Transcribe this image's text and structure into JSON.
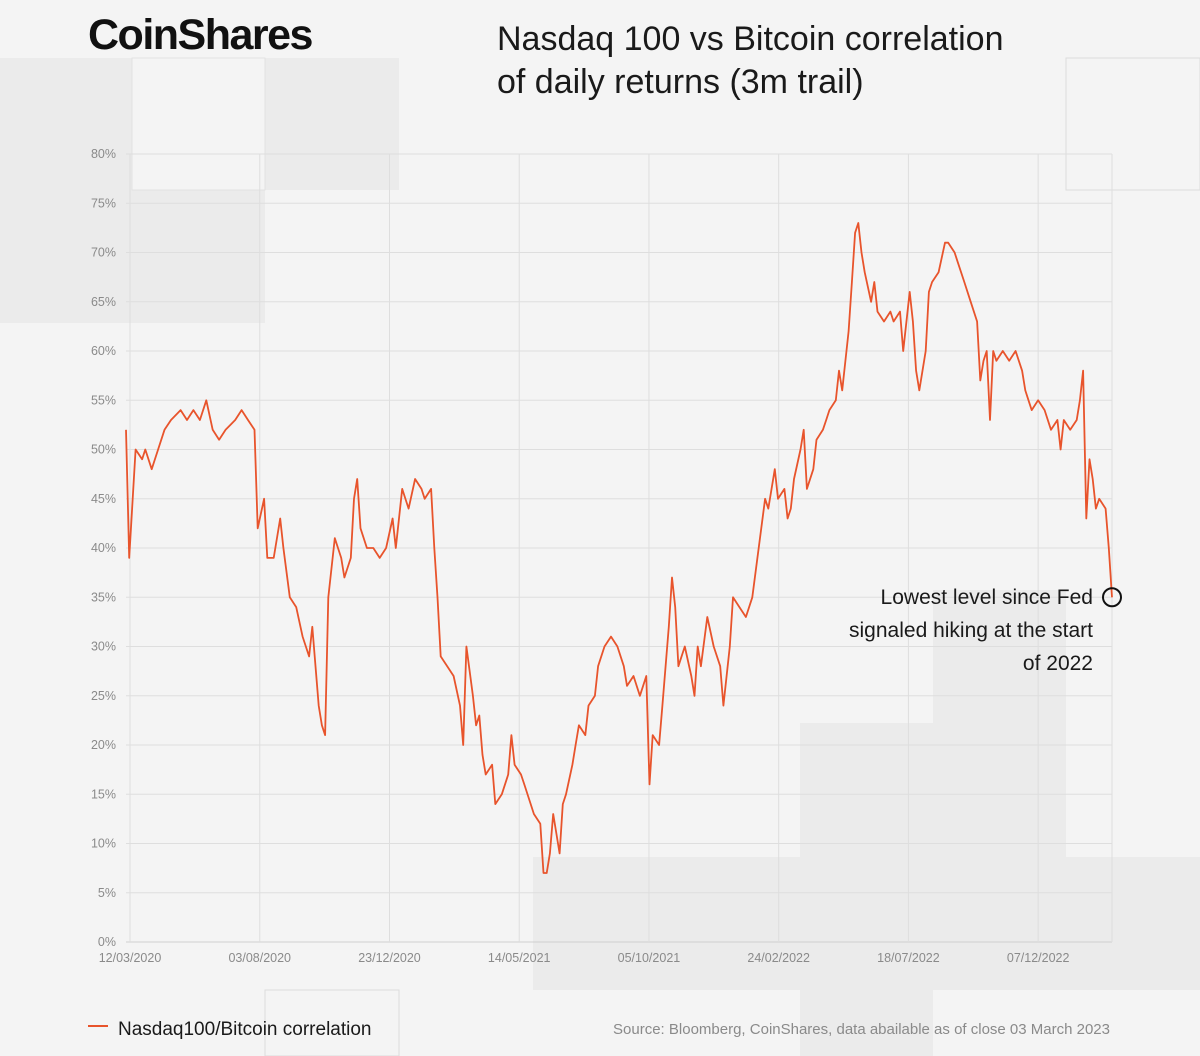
{
  "brand": {
    "logo_text": "CoinShares"
  },
  "chart_data": {
    "type": "line",
    "title_lines": [
      "Nasdaq 100 vs Bitcoin correlation",
      "of daily returns (3m trail)"
    ],
    "y_tick_labels": [
      "0%",
      "5%",
      "10%",
      "15%",
      "20%",
      "25%",
      "30%",
      "35%",
      "40%",
      "45%",
      "50%",
      "55%",
      "60%",
      "65%",
      "70%",
      "75%",
      "80%"
    ],
    "x_tick_labels": [
      "12/03/2020",
      "03/08/2020",
      "23/12/2020",
      "14/05/2021",
      "05/10/2021",
      "24/02/2022",
      "18/07/2022",
      "07/12/2022"
    ],
    "ylim": [
      0,
      80
    ],
    "grid": true,
    "line_color": "#e8542c",
    "series": [
      {
        "name": "Nasdaq100/Bitcoin correlation",
        "points": [
          [
            0,
            52
          ],
          [
            1,
            39
          ],
          [
            3,
            50
          ],
          [
            5,
            49
          ],
          [
            6,
            50
          ],
          [
            8,
            48
          ],
          [
            10,
            50
          ],
          [
            12,
            52
          ],
          [
            14,
            53
          ],
          [
            17,
            54
          ],
          [
            19,
            53
          ],
          [
            21,
            54
          ],
          [
            23,
            53
          ],
          [
            25,
            55
          ],
          [
            27,
            52
          ],
          [
            29,
            51
          ],
          [
            31,
            52
          ],
          [
            34,
            53
          ],
          [
            36,
            54
          ],
          [
            38,
            53
          ],
          [
            40,
            52
          ],
          [
            41,
            42
          ],
          [
            43,
            45
          ],
          [
            44,
            39
          ],
          [
            46,
            39
          ],
          [
            48,
            43
          ],
          [
            49,
            40
          ],
          [
            51,
            35
          ],
          [
            53,
            34
          ],
          [
            55,
            31
          ],
          [
            57,
            29
          ],
          [
            58,
            32
          ],
          [
            60,
            24
          ],
          [
            61,
            22
          ],
          [
            62,
            21
          ],
          [
            63,
            35
          ],
          [
            65,
            41
          ],
          [
            67,
            39
          ],
          [
            68,
            37
          ],
          [
            70,
            39
          ],
          [
            71,
            45
          ],
          [
            72,
            47
          ],
          [
            73,
            42
          ],
          [
            75,
            40
          ],
          [
            77,
            40
          ],
          [
            79,
            39
          ],
          [
            81,
            40
          ],
          [
            83,
            43
          ],
          [
            84,
            40
          ],
          [
            86,
            46
          ],
          [
            88,
            44
          ],
          [
            90,
            47
          ],
          [
            92,
            46
          ],
          [
            93,
            45
          ],
          [
            95,
            46
          ],
          [
            96,
            40
          ],
          [
            97,
            35
          ],
          [
            98,
            29
          ],
          [
            100,
            28
          ],
          [
            102,
            27
          ],
          [
            104,
            24
          ],
          [
            105,
            20
          ],
          [
            106,
            30
          ],
          [
            108,
            25
          ],
          [
            109,
            22
          ],
          [
            110,
            23
          ],
          [
            111,
            19
          ],
          [
            112,
            17
          ],
          [
            114,
            18
          ],
          [
            115,
            14
          ],
          [
            117,
            15
          ],
          [
            119,
            17
          ],
          [
            120,
            21
          ],
          [
            121,
            18
          ],
          [
            123,
            17
          ],
          [
            124,
            16
          ],
          [
            126,
            14
          ],
          [
            127,
            13
          ],
          [
            129,
            12
          ],
          [
            130,
            7
          ],
          [
            131,
            7
          ],
          [
            132,
            9
          ],
          [
            133,
            13
          ],
          [
            135,
            9
          ],
          [
            136,
            14
          ],
          [
            137,
            15
          ],
          [
            139,
            18
          ],
          [
            140,
            20
          ],
          [
            141,
            22
          ],
          [
            143,
            21
          ],
          [
            144,
            24
          ],
          [
            146,
            25
          ],
          [
            147,
            28
          ],
          [
            149,
            30
          ],
          [
            151,
            31
          ],
          [
            153,
            30
          ],
          [
            155,
            28
          ],
          [
            156,
            26
          ],
          [
            158,
            27
          ],
          [
            160,
            25
          ],
          [
            162,
            27
          ],
          [
            163,
            16
          ],
          [
            164,
            21
          ],
          [
            166,
            20
          ],
          [
            167,
            24
          ],
          [
            169,
            32
          ],
          [
            170,
            37
          ],
          [
            171,
            34
          ],
          [
            172,
            28
          ],
          [
            174,
            30
          ],
          [
            176,
            27
          ],
          [
            177,
            25
          ],
          [
            178,
            30
          ],
          [
            179,
            28
          ],
          [
            181,
            33
          ],
          [
            183,
            30
          ],
          [
            185,
            28
          ],
          [
            186,
            24
          ],
          [
            188,
            30
          ],
          [
            189,
            35
          ],
          [
            191,
            34
          ],
          [
            193,
            33
          ],
          [
            195,
            35
          ],
          [
            197,
            40
          ],
          [
            199,
            45
          ],
          [
            200,
            44
          ],
          [
            202,
            48
          ],
          [
            203,
            45
          ],
          [
            205,
            46
          ],
          [
            206,
            43
          ],
          [
            207,
            44
          ],
          [
            208,
            47
          ],
          [
            210,
            50
          ],
          [
            211,
            52
          ],
          [
            212,
            46
          ],
          [
            214,
            48
          ],
          [
            215,
            51
          ],
          [
            217,
            52
          ],
          [
            218,
            53
          ],
          [
            219,
            54
          ],
          [
            221,
            55
          ],
          [
            222,
            58
          ],
          [
            223,
            56
          ],
          [
            225,
            62
          ],
          [
            226,
            67
          ],
          [
            227,
            72
          ],
          [
            228,
            73
          ],
          [
            229,
            70
          ],
          [
            230,
            68
          ],
          [
            232,
            65
          ],
          [
            233,
            67
          ],
          [
            234,
            64
          ],
          [
            236,
            63
          ],
          [
            238,
            64
          ],
          [
            239,
            63
          ],
          [
            241,
            64
          ],
          [
            242,
            60
          ],
          [
            244,
            66
          ],
          [
            245,
            63
          ],
          [
            246,
            58
          ],
          [
            247,
            56
          ],
          [
            248,
            58
          ],
          [
            249,
            60
          ],
          [
            250,
            66
          ],
          [
            251,
            67
          ],
          [
            253,
            68
          ],
          [
            255,
            71
          ],
          [
            256,
            71
          ],
          [
            258,
            70
          ],
          [
            259,
            69
          ],
          [
            261,
            67
          ],
          [
            263,
            65
          ],
          [
            265,
            63
          ],
          [
            266,
            57
          ],
          [
            267,
            59
          ],
          [
            268,
            60
          ],
          [
            269,
            53
          ],
          [
            270,
            60
          ],
          [
            271,
            59
          ],
          [
            273,
            60
          ],
          [
            275,
            59
          ],
          [
            277,
            60
          ],
          [
            279,
            58
          ],
          [
            280,
            56
          ],
          [
            281,
            55
          ],
          [
            282,
            54
          ],
          [
            284,
            55
          ],
          [
            286,
            54
          ],
          [
            288,
            52
          ],
          [
            290,
            53
          ],
          [
            291,
            50
          ],
          [
            292,
            53
          ],
          [
            294,
            52
          ],
          [
            296,
            53
          ],
          [
            297,
            55
          ],
          [
            298,
            58
          ],
          [
            299,
            43
          ],
          [
            300,
            49
          ],
          [
            301,
            47
          ],
          [
            302,
            44
          ],
          [
            303,
            45
          ],
          [
            305,
            44
          ],
          [
            306,
            40
          ],
          [
            307,
            35
          ]
        ]
      }
    ],
    "annotation_lines": [
      "Lowest level since Fed",
      "signaled hiking at the start",
      "of 2022"
    ]
  },
  "legend": {
    "series_label": "Nasdaq100/Bitcoin correlation"
  },
  "source_text": "Source: Bloomberg, CoinShares, data abailable as of close 03 March 2023"
}
